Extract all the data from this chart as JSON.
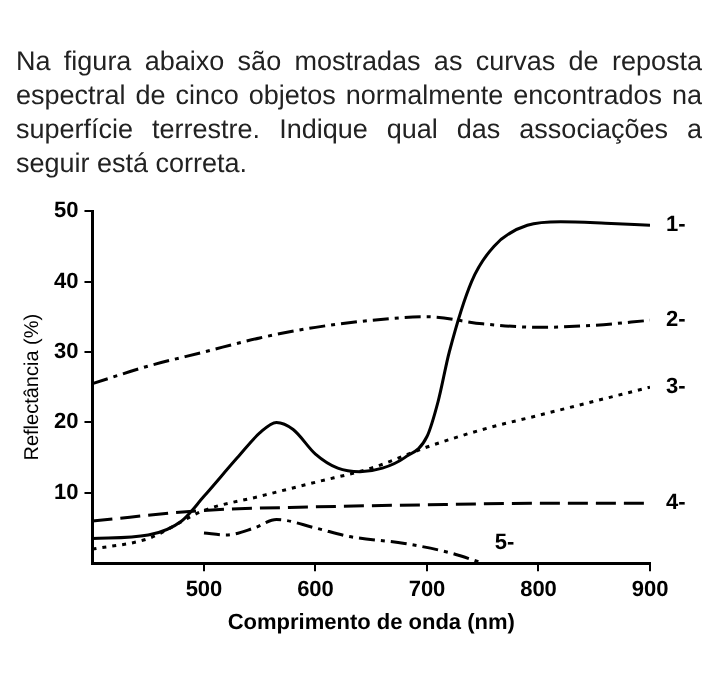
{
  "chart_data": {
    "type": "line",
    "title": "Na figura abaixo são mostradas as curvas de reposta espectral de cinco objetos normalmente encontrados na superfície terrestre. Indique qual das associações a seguir está correta.",
    "xlabel": "Comprimento de onda (nm)",
    "ylabel": "Reflectância (%)",
    "xlim": [
      400,
      900
    ],
    "xticks": [
      500,
      600,
      700,
      800,
      900
    ],
    "ylim": [
      0,
      50
    ],
    "yticks": [
      10,
      20,
      30,
      40,
      50
    ],
    "grid": false,
    "legend": false,
    "marker": "none",
    "series": [
      {
        "name": "1-",
        "color": "#000000",
        "line_style": "solid",
        "x": [
          400,
          450,
          480,
          500,
          530,
          550,
          565,
          580,
          600,
          620,
          640,
          660,
          680,
          700,
          710,
          720,
          740,
          760,
          790,
          820,
          860,
          900
        ],
        "values": [
          3.5,
          4,
          6,
          9.5,
          15,
          18.5,
          20,
          19,
          15.5,
          13.5,
          13,
          13.5,
          15,
          18,
          23,
          30,
          40,
          45,
          48,
          48.5,
          48.3,
          48
        ]
      },
      {
        "name": "2-",
        "color": "#000000",
        "line_style": "dashdot",
        "x": [
          400,
          450,
          500,
          550,
          600,
          650,
          700,
          750,
          800,
          850,
          900
        ],
        "values": [
          25.5,
          28,
          30,
          32,
          33.5,
          34.5,
          35,
          34,
          33.5,
          33.8,
          34.5
        ]
      },
      {
        "name": "3-",
        "color": "#000000",
        "line_style": "dotted",
        "x": [
          400,
          450,
          500,
          550,
          600,
          650,
          700,
          750,
          800,
          850,
          900
        ],
        "values": [
          2,
          3.5,
          7.5,
          9.5,
          11.5,
          13.5,
          16.5,
          19,
          21,
          23,
          25
        ]
      },
      {
        "name": "4-",
        "color": "#000000",
        "line_style": "dashed",
        "x": [
          400,
          500,
          600,
          700,
          800,
          900
        ],
        "values": [
          6,
          7.5,
          8,
          8.3,
          8.5,
          8.5
        ]
      },
      {
        "name": "5-",
        "color": "#000000",
        "line_style": "dashdot",
        "x": [
          500,
          520,
          545,
          565,
          600,
          630,
          680,
          720,
          750
        ],
        "values": [
          4.3,
          4,
          5,
          6.2,
          5,
          3.8,
          2.8,
          1.5,
          0
        ]
      }
    ]
  }
}
